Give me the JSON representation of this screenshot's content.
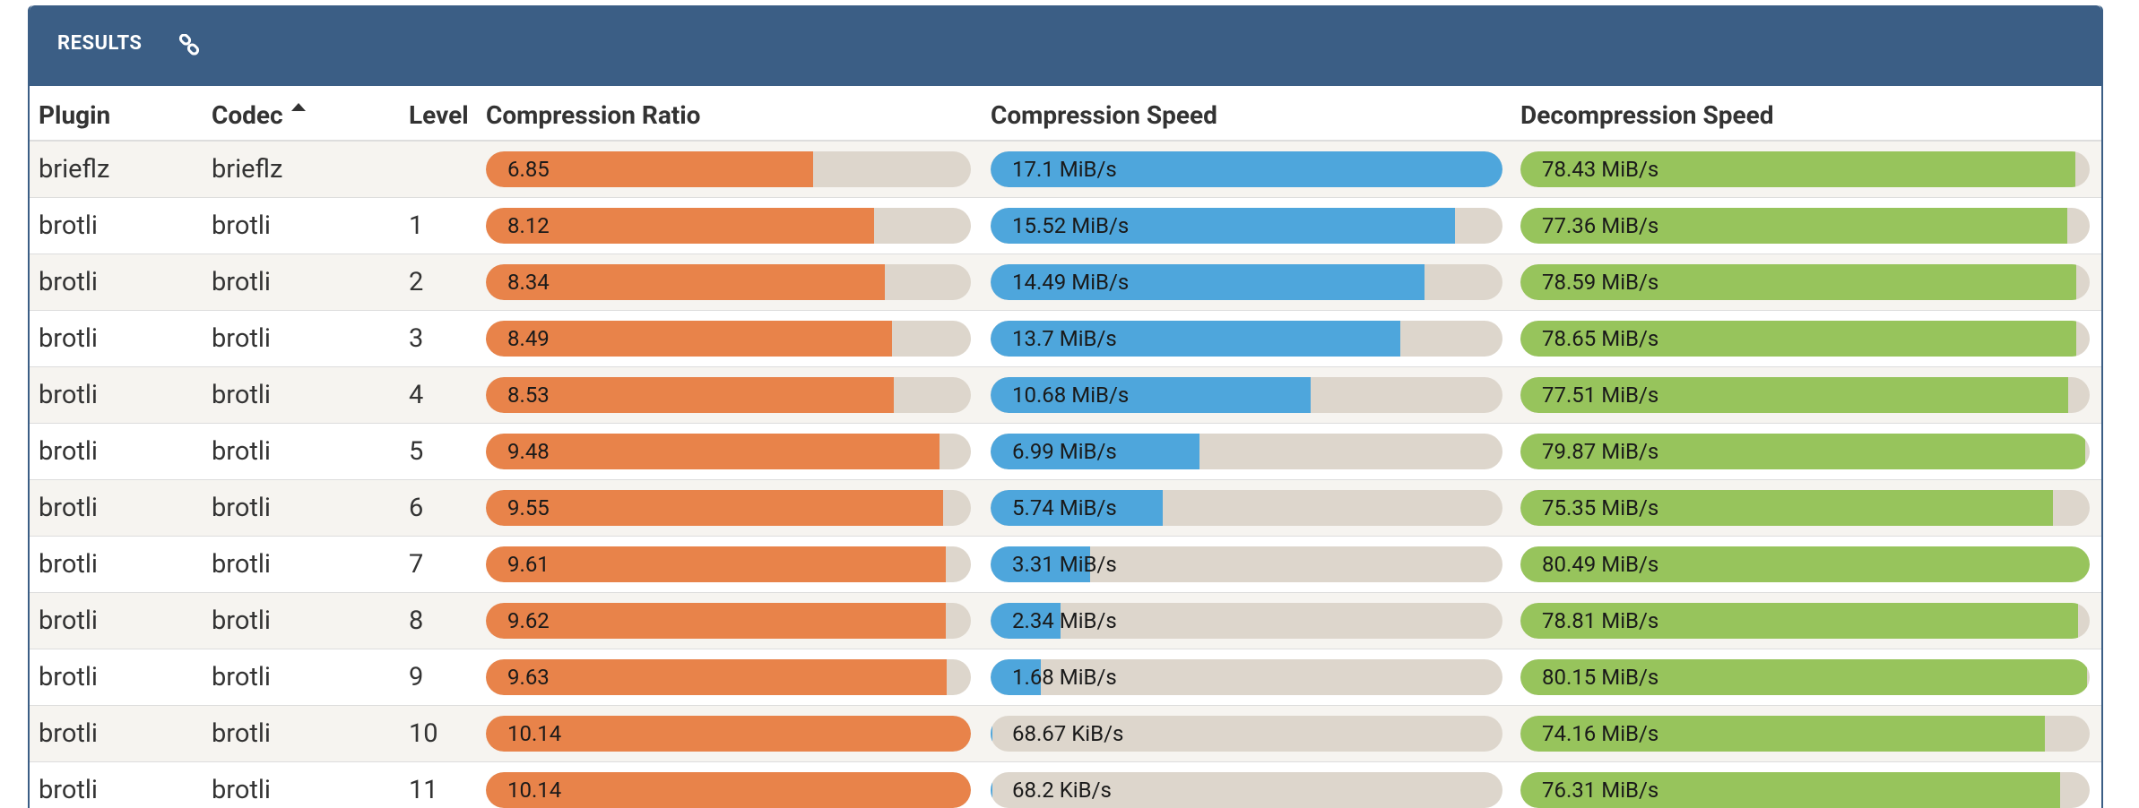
{
  "header": {
    "title": "RESULTS"
  },
  "columns": [
    "Plugin",
    "Codec",
    "Level",
    "Compression Ratio",
    "Compression Speed",
    "Decompression Speed"
  ],
  "rows": [
    {
      "plugin": "brieflz",
      "codec": "brieflz",
      "level": null,
      "ratio": 6.85,
      "compression_speed": {
        "value": 17.1,
        "label": "17.1 MiB/s"
      },
      "decompression_speed": {
        "value": 78.43,
        "label": "78.43 MiB/s"
      }
    },
    {
      "plugin": "brotli",
      "codec": "brotli",
      "level": 1,
      "ratio": 8.12,
      "compression_speed": {
        "value": 15.52,
        "label": "15.52 MiB/s"
      },
      "decompression_speed": {
        "value": 77.36,
        "label": "77.36 MiB/s"
      }
    },
    {
      "plugin": "brotli",
      "codec": "brotli",
      "level": 2,
      "ratio": 8.34,
      "compression_speed": {
        "value": 14.49,
        "label": "14.49 MiB/s"
      },
      "decompression_speed": {
        "value": 78.59,
        "label": "78.59 MiB/s"
      }
    },
    {
      "plugin": "brotli",
      "codec": "brotli",
      "level": 3,
      "ratio": 8.49,
      "compression_speed": {
        "value": 13.7,
        "label": "13.7 MiB/s"
      },
      "decompression_speed": {
        "value": 78.65,
        "label": "78.65 MiB/s"
      }
    },
    {
      "plugin": "brotli",
      "codec": "brotli",
      "level": 4,
      "ratio": 8.53,
      "compression_speed": {
        "value": 10.68,
        "label": "10.68 MiB/s"
      },
      "decompression_speed": {
        "value": 77.51,
        "label": "77.51 MiB/s"
      }
    },
    {
      "plugin": "brotli",
      "codec": "brotli",
      "level": 5,
      "ratio": 9.48,
      "compression_speed": {
        "value": 6.99,
        "label": "6.99 MiB/s"
      },
      "decompression_speed": {
        "value": 79.87,
        "label": "79.87 MiB/s"
      }
    },
    {
      "plugin": "brotli",
      "codec": "brotli",
      "level": 6,
      "ratio": 9.55,
      "compression_speed": {
        "value": 5.74,
        "label": "5.74 MiB/s"
      },
      "decompression_speed": {
        "value": 75.35,
        "label": "75.35 MiB/s"
      }
    },
    {
      "plugin": "brotli",
      "codec": "brotli",
      "level": 7,
      "ratio": 9.61,
      "compression_speed": {
        "value": 3.31,
        "label": "3.31 MiB/s"
      },
      "decompression_speed": {
        "value": 80.49,
        "label": "80.49 MiB/s"
      }
    },
    {
      "plugin": "brotli",
      "codec": "brotli",
      "level": 8,
      "ratio": 9.62,
      "compression_speed": {
        "value": 2.34,
        "label": "2.34 MiB/s"
      },
      "decompression_speed": {
        "value": 78.81,
        "label": "78.81 MiB/s"
      }
    },
    {
      "plugin": "brotli",
      "codec": "brotli",
      "level": 9,
      "ratio": 9.63,
      "compression_speed": {
        "value": 1.68,
        "label": "1.68 MiB/s"
      },
      "decompression_speed": {
        "value": 80.15,
        "label": "80.15 MiB/s"
      }
    },
    {
      "plugin": "brotli",
      "codec": "brotli",
      "level": 10,
      "ratio": 10.14,
      "compression_speed": {
        "value": 0.06706,
        "label": "68.67 KiB/s"
      },
      "decompression_speed": {
        "value": 74.16,
        "label": "74.16 MiB/s"
      }
    },
    {
      "plugin": "brotli",
      "codec": "brotli",
      "level": 11,
      "ratio": 10.14,
      "compression_speed": {
        "value": 0.0666,
        "label": "68.2 KiB/s"
      },
      "decompression_speed": {
        "value": 76.31,
        "label": "76.31 MiB/s"
      }
    }
  ]
}
